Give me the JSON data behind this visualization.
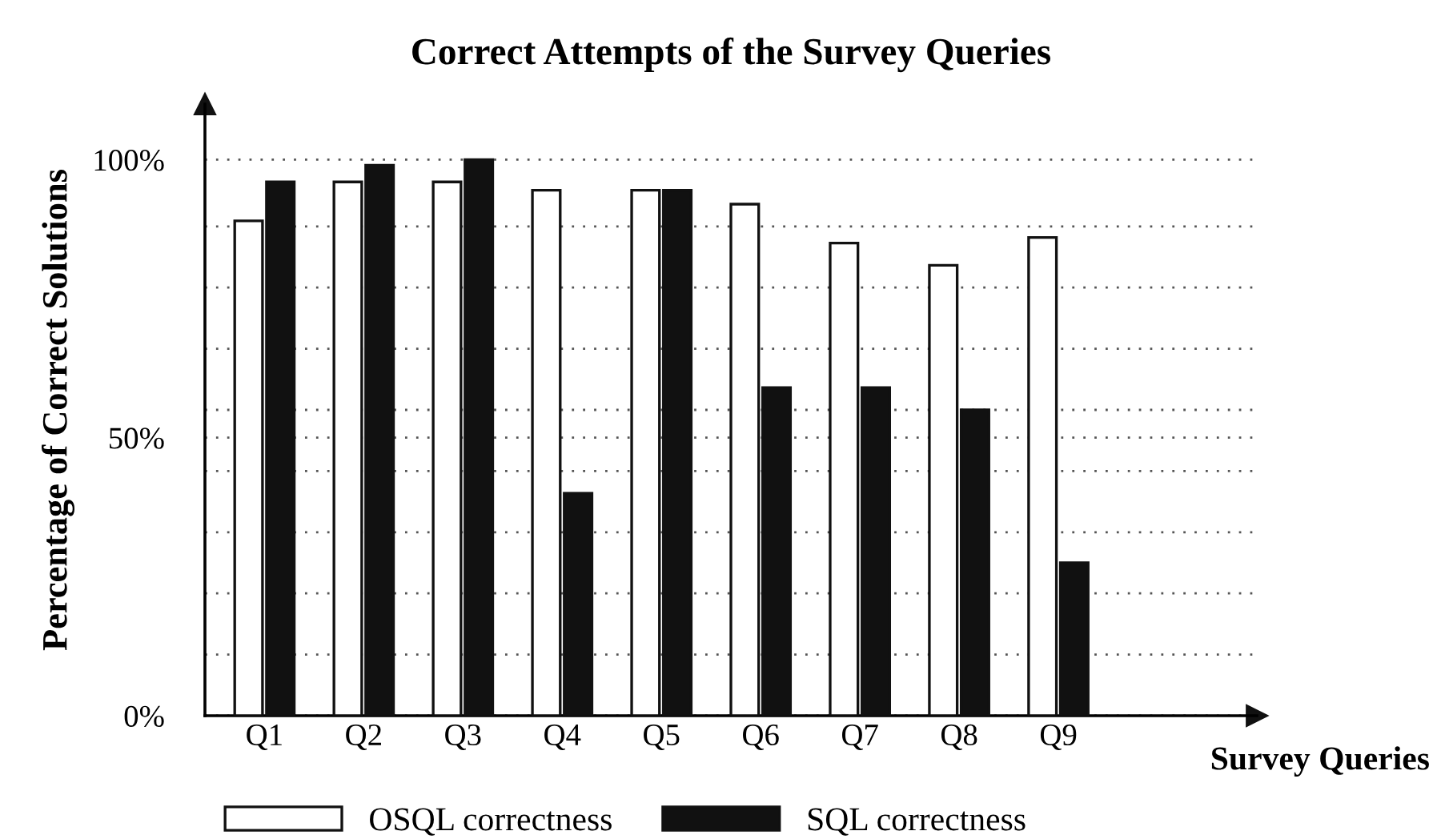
{
  "chart_data": {
    "type": "bar",
    "title": "Correct Attempts of the Survey Queries",
    "xlabel": "Survey Queries",
    "ylabel": "Percentage of Correct Solutions",
    "categories": [
      "Q1",
      "Q2",
      "Q3",
      "Q4",
      "Q5",
      "Q6",
      "Q7",
      "Q8",
      "Q9"
    ],
    "series": [
      {
        "name": "OSQL correctness",
        "color": "#ffffff",
        "values": [
          89,
          96,
          96,
          94.5,
          94.5,
          92,
          85,
          81,
          86
        ]
      },
      {
        "name": "SQL correctness",
        "color": "#111111",
        "values": [
          96,
          99,
          100,
          40,
          94.5,
          59,
          59,
          55,
          27.5
        ]
      }
    ],
    "ylim": [
      0,
      110
    ],
    "yticks": [
      {
        "value": 0,
        "label": "0%"
      },
      {
        "value": 11,
        "label": null
      },
      {
        "value": 22,
        "label": null
      },
      {
        "value": 33,
        "label": null
      },
      {
        "value": 44,
        "label": null
      },
      {
        "value": 50,
        "label": "50%"
      },
      {
        "value": 55,
        "label": null
      },
      {
        "value": 66,
        "label": null
      },
      {
        "value": 77,
        "label": null
      },
      {
        "value": 88,
        "label": null
      },
      {
        "value": 100,
        "label": "100%"
      }
    ],
    "grid": "y",
    "legend": "bottom"
  }
}
